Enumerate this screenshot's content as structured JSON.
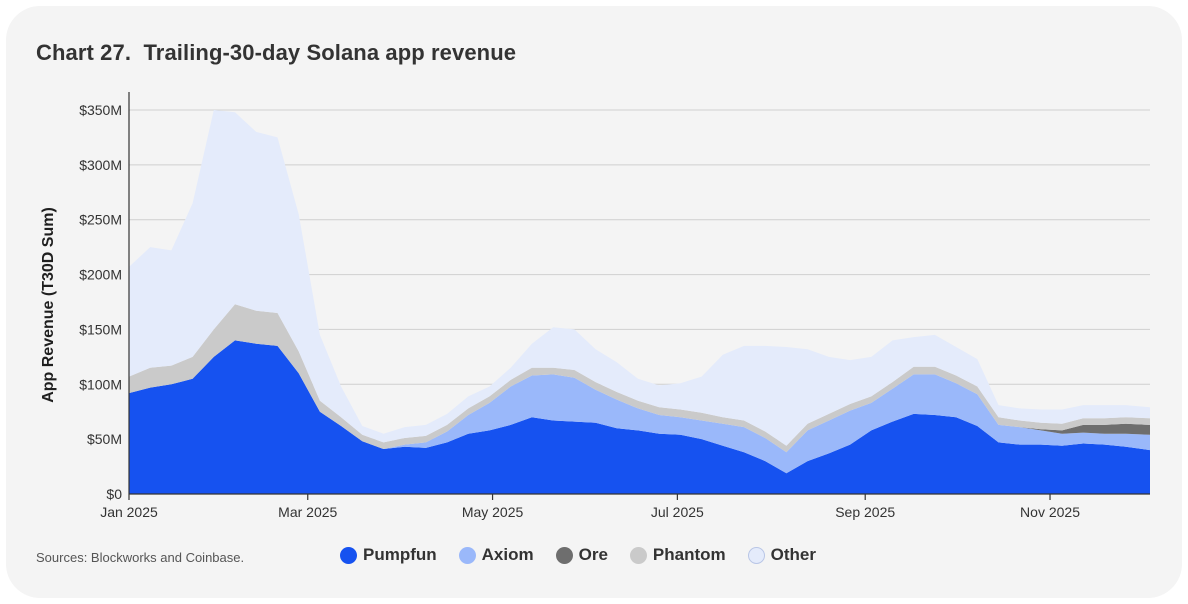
{
  "title": "Chart 27.  Trailing-30-day Solana app revenue",
  "source": "Sources: Blockworks and Coinbase.",
  "chart_data": {
    "type": "area",
    "stacked": true,
    "title": "Chart 27.  Trailing-30-day Solana app revenue",
    "xlabel": "",
    "ylabel": "App Revenue (T30D Sum)",
    "y_unit": "M USD",
    "ylim": [
      0,
      365
    ],
    "y_ticks": [
      0,
      50,
      100,
      150,
      200,
      250,
      300,
      350
    ],
    "y_tick_labels": [
      "$0",
      "$50M",
      "$100M",
      "$150M",
      "$200M",
      "$250M",
      "$300M",
      "$350M"
    ],
    "x_range": [
      "2025-01-01",
      "2025-12-04"
    ],
    "x_ticks": [
      {
        "date": "2025-01-01",
        "label": "Jan 2025"
      },
      {
        "date": "2025-03-01",
        "label": "Mar 2025"
      },
      {
        "date": "2025-05-01",
        "label": "May 2025"
      },
      {
        "date": "2025-07-01",
        "label": "Jul 2025"
      },
      {
        "date": "2025-09-01",
        "label": "Sep 2025"
      },
      {
        "date": "2025-11-01",
        "label": "Nov 2025"
      }
    ],
    "grid": true,
    "legend_position": "bottom",
    "x": [
      "2025-01-01",
      "2025-01-08",
      "2025-01-15",
      "2025-01-22",
      "2025-01-29",
      "2025-02-05",
      "2025-02-12",
      "2025-02-19",
      "2025-02-26",
      "2025-03-05",
      "2025-03-12",
      "2025-03-19",
      "2025-03-26",
      "2025-04-02",
      "2025-04-09",
      "2025-04-16",
      "2025-04-23",
      "2025-04-30",
      "2025-05-07",
      "2025-05-14",
      "2025-05-21",
      "2025-05-28",
      "2025-06-04",
      "2025-06-11",
      "2025-06-18",
      "2025-06-25",
      "2025-07-02",
      "2025-07-09",
      "2025-07-16",
      "2025-07-23",
      "2025-07-30",
      "2025-08-06",
      "2025-08-13",
      "2025-08-20",
      "2025-08-27",
      "2025-09-03",
      "2025-09-10",
      "2025-09-17",
      "2025-09-24",
      "2025-10-01",
      "2025-10-08",
      "2025-10-15",
      "2025-10-22",
      "2025-10-29",
      "2025-11-05",
      "2025-11-12",
      "2025-11-19",
      "2025-11-26",
      "2025-12-04"
    ],
    "series": [
      {
        "name": "Pumpfun",
        "color": "#1652f0",
        "values": [
          92,
          97,
          100,
          105,
          125,
          140,
          137,
          135,
          110,
          75,
          62,
          48,
          41,
          43,
          42,
          47,
          55,
          58,
          63,
          70,
          67,
          66,
          65,
          60,
          58,
          55,
          54,
          50,
          44,
          38,
          30,
          19,
          30,
          37,
          45,
          58,
          66,
          73,
          72,
          70,
          62,
          47,
          45,
          45,
          44,
          46,
          45,
          43,
          40
        ]
      },
      {
        "name": "Axiom",
        "color": "#9ab8fa",
        "values": [
          0,
          0,
          0,
          0,
          0,
          0,
          0,
          0,
          0,
          0,
          0,
          0,
          0,
          2,
          5,
          10,
          17,
          25,
          35,
          38,
          42,
          40,
          30,
          26,
          20,
          17,
          16,
          17,
          20,
          23,
          21,
          19,
          28,
          30,
          31,
          25,
          30,
          36,
          37,
          31,
          29,
          16,
          16,
          13,
          11,
          10,
          10,
          12,
          14
        ]
      },
      {
        "name": "Ore",
        "color": "#6e6e6e",
        "values": [
          0,
          0,
          0,
          0,
          0,
          0,
          0,
          0,
          0,
          0,
          0,
          0,
          0,
          0,
          0,
          0,
          0,
          0,
          0,
          0,
          0,
          0,
          0,
          0,
          0,
          0,
          0,
          0,
          0,
          0,
          0,
          0,
          0,
          0,
          0,
          0,
          0,
          0,
          0,
          0,
          0,
          0,
          0,
          1,
          3,
          7,
          8,
          9,
          9
        ]
      },
      {
        "name": "Phantom",
        "color": "#cacaca",
        "values": [
          15,
          18,
          17,
          20,
          25,
          33,
          30,
          30,
          20,
          10,
          8,
          6,
          6,
          6,
          6,
          6,
          6,
          6,
          6,
          7,
          6,
          7,
          7,
          7,
          7,
          7,
          7,
          7,
          6,
          6,
          6,
          6,
          6,
          6,
          6,
          6,
          6,
          7,
          7,
          7,
          7,
          7,
          6,
          6,
          6,
          6,
          6,
          6,
          6
        ]
      },
      {
        "name": "Other",
        "color": "#e4ebfb",
        "values": [
          100,
          110,
          105,
          140,
          200,
          175,
          163,
          160,
          125,
          60,
          28,
          8,
          8,
          10,
          10,
          10,
          11,
          9,
          11,
          22,
          37,
          37,
          30,
          27,
          20,
          20,
          24,
          33,
          57,
          68,
          78,
          90,
          68,
          52,
          40,
          36,
          38,
          27,
          29,
          26,
          25,
          11,
          11,
          12,
          13,
          12,
          12,
          11,
          10
        ]
      }
    ]
  }
}
